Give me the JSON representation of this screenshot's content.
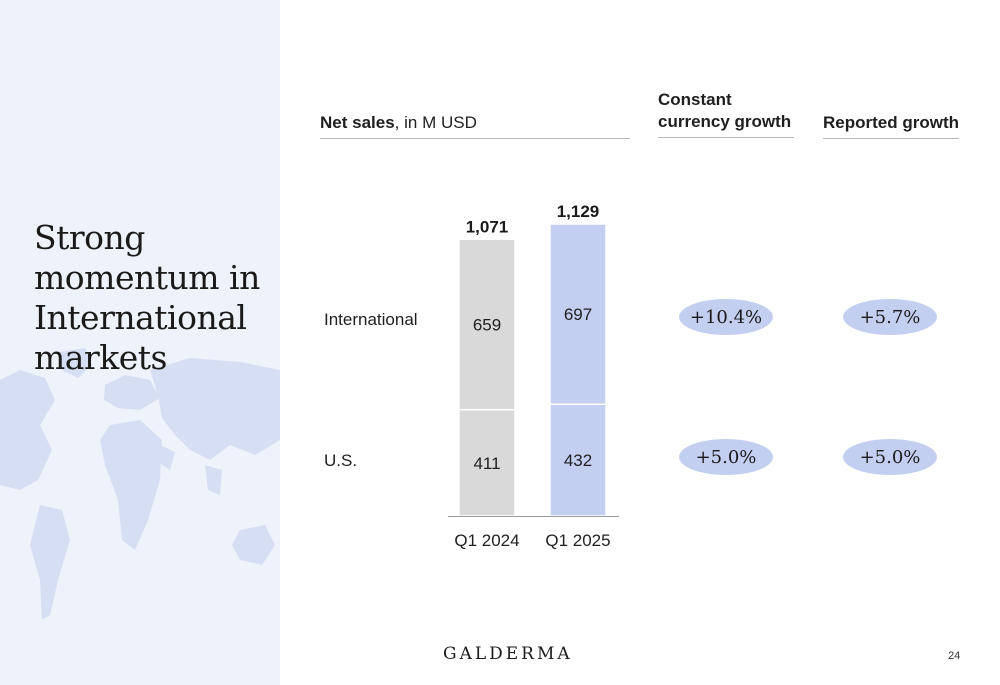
{
  "slide": {
    "title": "Strong momentum in International markets",
    "page_number": "24",
    "logo_text": "GALDERMA"
  },
  "headers": {
    "net_sales_bold": "Net sales",
    "net_sales_rest": ", in M USD",
    "constant_currency_growth": "Constant currency growth",
    "reported_growth": "Reported growth"
  },
  "rows": {
    "international": "International",
    "us": "U.S."
  },
  "growth": {
    "constant_currency": {
      "international": "+10.4%",
      "us": "+5.0%"
    },
    "reported": {
      "international": "+5.7%",
      "us": "+5.0%"
    }
  },
  "colors": {
    "panel_bg": "#eef2fb",
    "map": "#d6def3",
    "bar_2024": "#d9d9d9",
    "bar_2025": "#c3cff0",
    "pill": "#c3cff0"
  },
  "chart_data": {
    "type": "bar",
    "stacked": true,
    "categories": [
      "Q1 2024",
      "Q1 2025"
    ],
    "series": [
      {
        "name": "U.S.",
        "values": [
          411,
          432
        ]
      },
      {
        "name": "International",
        "values": [
          659,
          697
        ]
      }
    ],
    "totals": [
      "1,071",
      "1,129"
    ],
    "ylim": [
      0,
      1129
    ],
    "grid": false,
    "legend": "none"
  }
}
